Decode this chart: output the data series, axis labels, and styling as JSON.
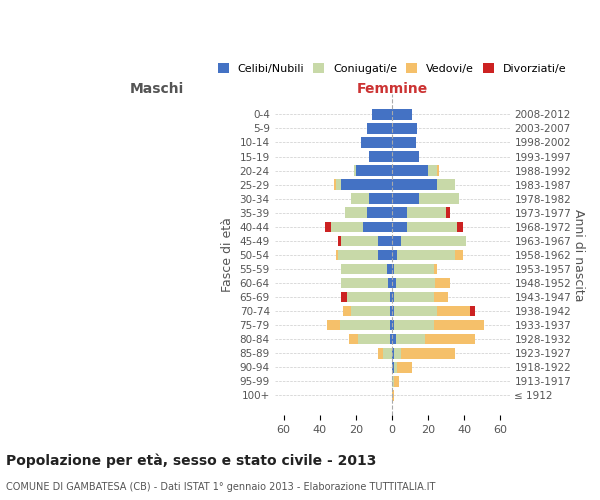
{
  "age_groups": [
    "100+",
    "95-99",
    "90-94",
    "85-89",
    "80-84",
    "75-79",
    "70-74",
    "65-69",
    "60-64",
    "55-59",
    "50-54",
    "45-49",
    "40-44",
    "35-39",
    "30-34",
    "25-29",
    "20-24",
    "15-19",
    "10-14",
    "5-9",
    "0-4"
  ],
  "birth_years": [
    "≤ 1912",
    "1913-1917",
    "1918-1922",
    "1923-1927",
    "1928-1932",
    "1933-1937",
    "1938-1942",
    "1943-1947",
    "1948-1952",
    "1953-1957",
    "1958-1962",
    "1963-1967",
    "1968-1972",
    "1973-1977",
    "1978-1982",
    "1983-1987",
    "1988-1992",
    "1993-1997",
    "1998-2002",
    "2003-2007",
    "2008-2012"
  ],
  "males": {
    "celibi": [
      0,
      0,
      0,
      0,
      1,
      1,
      1,
      1,
      2,
      3,
      8,
      8,
      16,
      14,
      13,
      28,
      20,
      13,
      17,
      14,
      11
    ],
    "coniugati": [
      0,
      0,
      0,
      5,
      18,
      28,
      22,
      24,
      26,
      25,
      22,
      20,
      18,
      12,
      10,
      3,
      1,
      0,
      0,
      0,
      0
    ],
    "vedovi": [
      0,
      0,
      0,
      3,
      5,
      7,
      4,
      0,
      0,
      0,
      1,
      0,
      0,
      0,
      0,
      1,
      0,
      0,
      0,
      0,
      0
    ],
    "divorziati": [
      0,
      0,
      0,
      0,
      0,
      0,
      0,
      3,
      0,
      0,
      0,
      2,
      3,
      0,
      0,
      0,
      0,
      0,
      0,
      0,
      0
    ]
  },
  "females": {
    "nubili": [
      0,
      0,
      1,
      1,
      2,
      1,
      1,
      1,
      2,
      1,
      3,
      5,
      8,
      8,
      15,
      25,
      20,
      15,
      13,
      14,
      11
    ],
    "coniugate": [
      0,
      1,
      2,
      4,
      16,
      22,
      24,
      22,
      22,
      22,
      32,
      36,
      28,
      22,
      22,
      10,
      5,
      0,
      0,
      0,
      0
    ],
    "vedove": [
      1,
      3,
      8,
      30,
      28,
      28,
      18,
      8,
      8,
      2,
      4,
      0,
      0,
      0,
      0,
      0,
      1,
      0,
      0,
      0,
      0
    ],
    "divorziate": [
      0,
      0,
      0,
      0,
      0,
      0,
      3,
      0,
      0,
      0,
      0,
      0,
      3,
      2,
      0,
      0,
      0,
      0,
      0,
      0,
      0
    ]
  },
  "colors": {
    "celibi_nubili": "#4472c4",
    "coniugati": "#c8d9a8",
    "vedovi": "#f5c06a",
    "divorziati": "#cc2222"
  },
  "xlim": 65,
  "title": "Popolazione per età, sesso e stato civile - 2013",
  "subtitle": "COMUNE DI GAMBATESA (CB) - Dati ISTAT 1° gennaio 2013 - Elaborazione TUTTITALIA.IT",
  "ylabel_left": "Fasce di età",
  "ylabel_right": "Anni di nascita",
  "xlabel_left": "Maschi",
  "xlabel_right": "Femmine"
}
